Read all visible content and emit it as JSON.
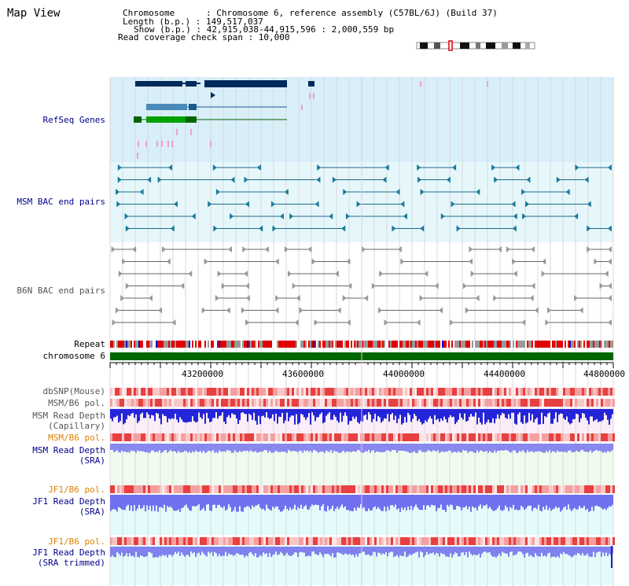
{
  "page": {
    "title": "Map View"
  },
  "info": {
    "chromosome_line": "Chromosome      : Chromosome 6, reference assembly (C57BL/6J) (Build 37)",
    "length_line": "Length (b.p.) : 149,517,037",
    "show_line": "Show (b.p.) : 42,915,038-44,915,596 : 2,000,559 bp",
    "coverage_line": "Read coverage check span : 10,000"
  },
  "tracks": {
    "refseq": "RefSeq Genes",
    "msm_bac": "MSM BAC end pairs",
    "b6n_bac": "B6N BAC end pairs",
    "repeat": "Repeat",
    "chromosome": "chromosome 6",
    "dbsnp": "dbSNP(Mouse)",
    "msm_b6_pol_1": "MSM/B6 pol.",
    "msm_depth_cap_1": "MSM Read Depth",
    "msm_depth_cap_2": "(Capillary)",
    "msm_b6_pol_2": "MSM/B6 pol.",
    "msm_depth_sra_1": "MSM Read Depth",
    "msm_depth_sra_2": "(SRA)",
    "jf1_b6_pol_1": "JF1/B6 pol.",
    "jf1_depth_1": "JF1 Read Depth",
    "jf1_depth_2": "(SRA)",
    "jf1_b6_pol_2": "JF1/B6 pol.",
    "jf1_trim_1": "JF1 Read Depth",
    "jf1_trim_2": "(SRA trimmed)"
  },
  "axis": {
    "ticks": [
      "43200000",
      "43600000",
      "44000000",
      "44400000",
      "44800000"
    ]
  },
  "colors": {
    "gene_dark": "#002a5c",
    "gene_green": "#006400",
    "refseq_bg": "#d8eef9",
    "msm_bg": "#e6f7fb",
    "chrom_green": "#006600",
    "depth_blue": "#2020e0",
    "depth_light_blue": "#8080f0",
    "snp_red": "#f05050"
  }
}
